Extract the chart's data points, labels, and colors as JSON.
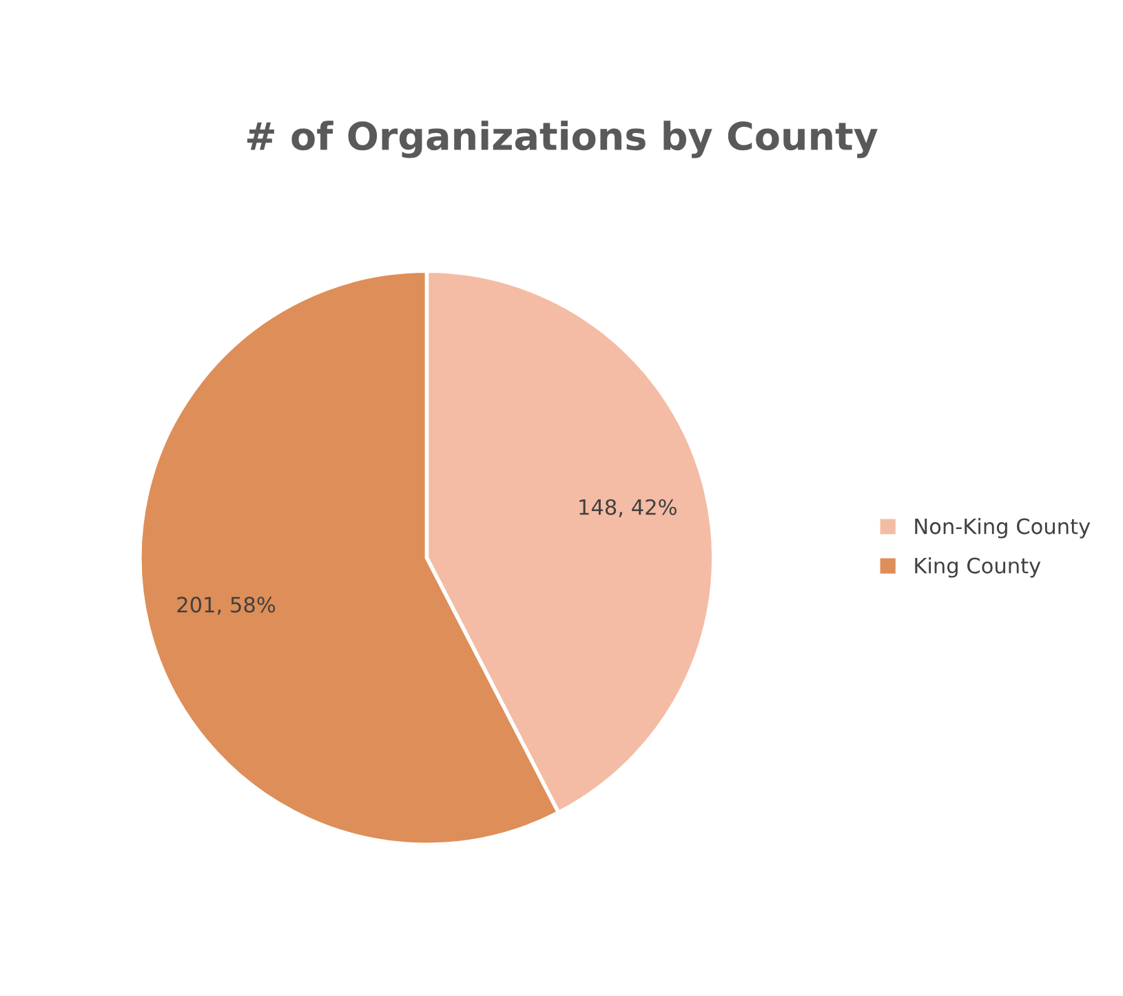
{
  "chart_data": {
    "type": "pie",
    "title": "# of Organizations by County",
    "categories": [
      "Non-King County",
      "King County"
    ],
    "values": [
      148,
      201
    ],
    "colors": [
      "#f4bca4",
      "#de8e58"
    ],
    "value_labels": [
      "148, 42%",
      "201, 58%"
    ],
    "legend": "right"
  }
}
